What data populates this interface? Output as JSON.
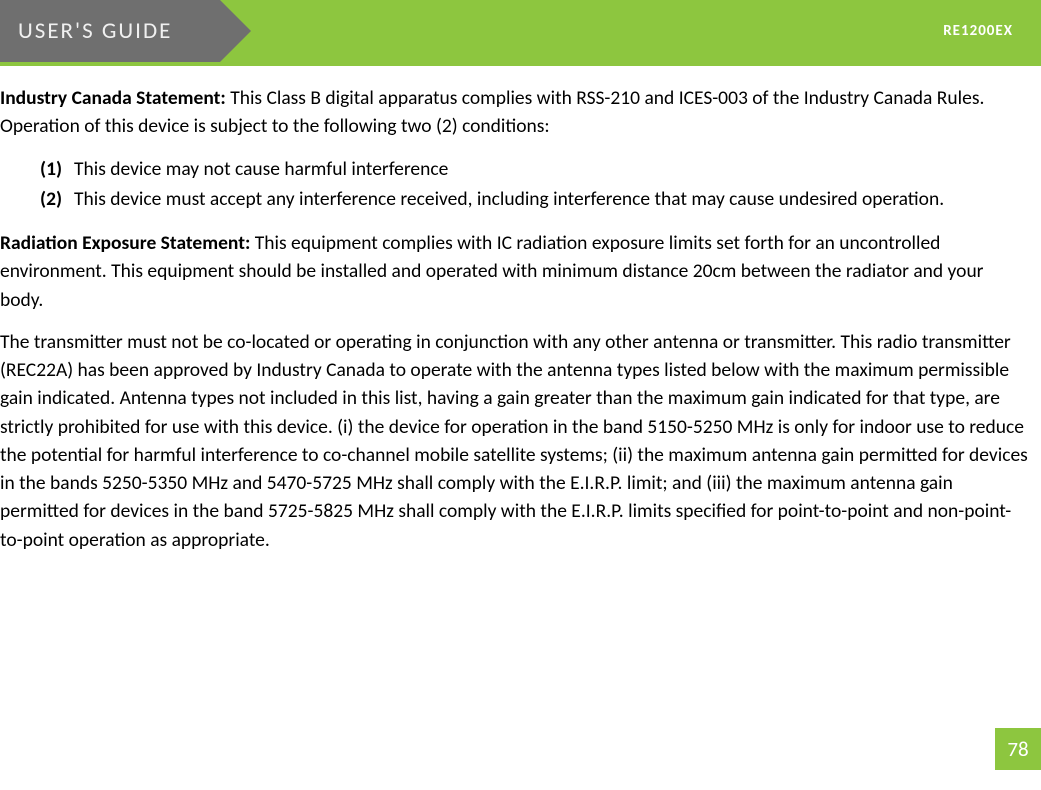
{
  "header": {
    "title": "USER'S GUIDE",
    "model": "RE1200EX"
  },
  "colors": {
    "header_gray": "#6f6f6f",
    "brand_green": "#8dc63f",
    "header_text": "#f0f0f0",
    "body_text": "#000000",
    "page_num_text": "#ffffff"
  },
  "typography": {
    "body_font": "Calibri",
    "body_size_pt": 15,
    "header_title_size_pt": 18,
    "header_title_letter_spacing": 2
  },
  "sections": {
    "industry_canada": {
      "label": "Industry Canada Statement:",
      "text": " This Class B digital apparatus complies with RSS-210 and ICES-003 of the Industry Canada Rules.  Operation of this device is subject to the following two (2) conditions:"
    },
    "conditions": [
      {
        "num": "(1)",
        "text": "This device may not cause harmful interference"
      },
      {
        "num": "(2)",
        "text": "This device must accept any interference received, including interference that may cause undesired operation."
      }
    ],
    "radiation_exposure": {
      "label": "Radiation Exposure Statement:",
      "text": " This equipment complies with IC radiation exposure limits set forth for an uncontrolled environment.  This equipment should be installed and operated with minimum distance 20cm between the radiator and your body."
    },
    "transmitter": "The transmitter must not be co-located or operating in conjunction with any other antenna or transmitter. This radio transmitter (REC22A) has been approved by Industry Canada to operate with the antenna types listed below with the maximum permissible gain indicated. Antenna types not included in this list, having a gain greater than the maximum gain indicated for that type, are strictly prohibited for use with this device. (i) the device for operation in the band 5150-5250 MHz is only for indoor use to reduce the potential for harmful interference to co-channel mobile satellite systems; (ii) the maximum antenna gain permitted for devices in the bands 5250-5350 MHz and 5470-5725 MHz shall comply with the E.I.R.P. limit; and (iii) the maximum antenna gain permitted for devices in the band 5725-5825 MHz shall comply with the E.I.R.P. limits specified for point-to-point and non-point-to-point operation as appropriate."
  },
  "page_number": "78"
}
